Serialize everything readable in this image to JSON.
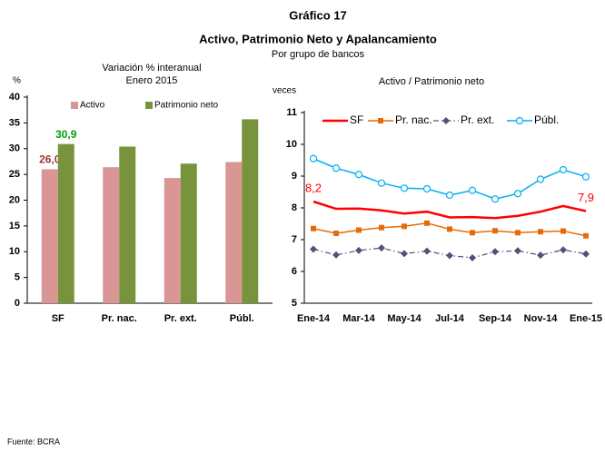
{
  "header": {
    "figure": "Gráfico 17",
    "title": "Activo, Patrimonio Neto y Apalancamiento",
    "subtitle": "Por grupo de bancos"
  },
  "source": "Fuente: BCRA",
  "chart_data": [
    {
      "type": "bar",
      "title": "Variación % interanual",
      "subtitle": "Enero 2015",
      "y_label": "%",
      "categories": [
        "SF",
        "Pr. nac.",
        "Pr. ext.",
        "Públ."
      ],
      "series": [
        {
          "name": "Activo",
          "color": "#d99694",
          "label_color": "#953735",
          "values": [
            26.0,
            26.4,
            24.3,
            27.4
          ],
          "value_labels": [
            "26,0",
            null,
            null,
            null
          ]
        },
        {
          "name": "Patrimonio neto",
          "color": "#77933c",
          "label_color": "#00a000",
          "values": [
            30.9,
            30.4,
            27.1,
            35.7
          ],
          "value_labels": [
            "30,9",
            null,
            null,
            null
          ]
        }
      ],
      "ylim": [
        0,
        40
      ],
      "yticks": [
        0,
        5,
        10,
        15,
        20,
        25,
        30,
        35,
        40
      ],
      "grid": false,
      "legend": "top"
    },
    {
      "type": "line",
      "title": "Activo / Patrimonio neto",
      "y_label": "veces",
      "categories": [
        "Ene-14",
        null,
        "Mar-14",
        null,
        "May-14",
        null,
        "Jul-14",
        null,
        "Sep-14",
        null,
        "Nov-14",
        null,
        "Ene-15"
      ],
      "series": [
        {
          "name": "SF",
          "color": "#ff0000",
          "marker": "none",
          "dash": "solid",
          "width": 2.5,
          "values": [
            8.2,
            7.97,
            7.98,
            7.92,
            7.82,
            7.88,
            7.7,
            7.71,
            7.68,
            7.75,
            7.88,
            8.06,
            7.9
          ],
          "value_labels": [
            "8,2",
            null,
            null,
            null,
            null,
            null,
            null,
            null,
            null,
            null,
            null,
            null,
            "7,9"
          ]
        },
        {
          "name": "Pr. nac.",
          "color": "#e46c0a",
          "marker": "square",
          "dash": "solid",
          "width": 1.5,
          "values": [
            7.35,
            7.2,
            7.3,
            7.38,
            7.42,
            7.52,
            7.33,
            7.22,
            7.28,
            7.22,
            7.25,
            7.27,
            7.12
          ]
        },
        {
          "name": "Pr. ext.",
          "color": "#604a7b",
          "marker": "diamond",
          "dash": "dashdot",
          "width": 1.2,
          "values": [
            6.7,
            6.52,
            6.66,
            6.74,
            6.56,
            6.64,
            6.5,
            6.43,
            6.62,
            6.65,
            6.51,
            6.68,
            6.55
          ]
        },
        {
          "name": "Públ.",
          "color": "#00b0f0",
          "marker": "circle",
          "dash": "solid",
          "width": 1.5,
          "values": [
            9.55,
            9.25,
            9.05,
            8.78,
            8.62,
            8.6,
            8.4,
            8.55,
            8.28,
            8.45,
            8.9,
            9.2,
            8.98
          ]
        }
      ],
      "ylim": [
        5,
        11
      ],
      "yticks": [
        5,
        6,
        7,
        8,
        9,
        10,
        11
      ],
      "grid": false,
      "legend": "top"
    }
  ]
}
